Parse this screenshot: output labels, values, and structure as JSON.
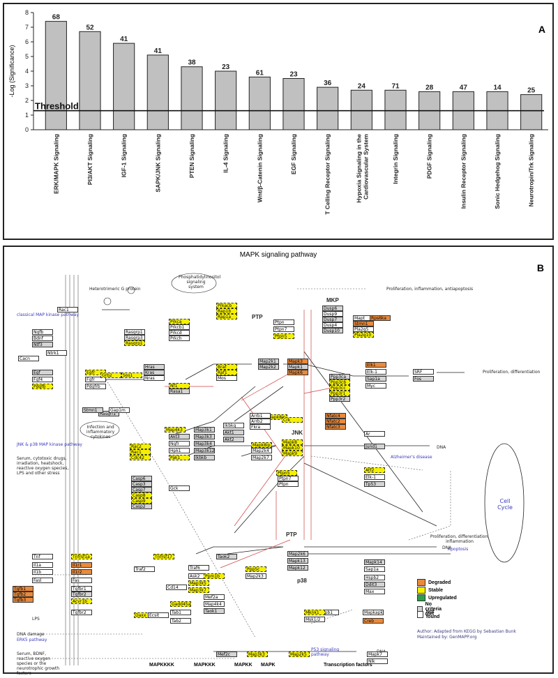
{
  "chart_data": {
    "type": "bar",
    "panel_label": "A",
    "ylabel": "-Log (Significance)",
    "ylim": [
      0,
      8
    ],
    "yticks": [
      0,
      1,
      2,
      3,
      4,
      5,
      6,
      7,
      8
    ],
    "threshold": {
      "label": "Threshold",
      "value": 1.3
    },
    "categories": [
      "ERK/MAPK Signaling",
      "PI3/AKT Signaling",
      "IGF-1 Signaling",
      "SAPK/JNK Signaling",
      "PTEN Signaling",
      "IL-4 Signaling",
      "Wnt/β-Catenin Signaling",
      "EGF Signaling",
      "T Celling Receptor Signaling",
      "Hypoxia Signaling in the Cardiovascular System",
      "Integrin Signaling",
      "PDGF Signaling",
      "Insulin Receptor Signaling",
      "Sonic Hedgehog Signaling",
      "Neurotropin/Trk Signaling"
    ],
    "values": [
      7.4,
      6.7,
      5.9,
      5.1,
      4.3,
      4.0,
      3.6,
      3.5,
      2.9,
      2.7,
      2.7,
      2.6,
      2.6,
      2.6,
      2.4
    ],
    "bar_labels": [
      "68",
      "52",
      "41",
      "41",
      "38",
      "23",
      "61",
      "23",
      "36",
      "24",
      "71",
      "28",
      "47",
      "14",
      "25"
    ],
    "bar_color": "#c0c0c0",
    "grid": false
  },
  "pathway": {
    "panel_label": "B",
    "title": "MAPK signaling pathway",
    "sections": [
      "classical MAP kinase pathway",
      "JNK & p38 MAP kinase pathway",
      "ERK5 pathway"
    ],
    "group_labels": [
      "PTP",
      "MKP",
      "PTP",
      "JNK",
      "p38"
    ],
    "tiers": [
      "MAPKKKK",
      "MAPKKK",
      "MAPKK",
      "MAPK",
      "Transcription factors"
    ],
    "legend": [
      {
        "label": "Degraded",
        "color": "#e98a3c"
      },
      {
        "label": "Stable",
        "color": "#f4f000"
      },
      {
        "label": "Upregulated",
        "color": "#2e9e4a"
      },
      {
        "label": "No criteria met",
        "color": "#d4d4d4"
      },
      {
        "label": "Not found",
        "color": "#ffffff"
      }
    ],
    "author": "Author:  Adapted from KEGG by Sebastian Bunk",
    "maintainer": "Maintained by: GenMAPP.org",
    "outcomes": {
      "prolif_inflam": "Proliferation, inflammation, antiapoptosis",
      "prolif_diff": "Proliferation, differentiation",
      "prolif_diff_inflam": "Proliferation, differentiation, inflammation",
      "apoptosis": "Apoptosis",
      "alzheimers": "Alzheimer's disease",
      "p53": "P53 signaling pathway",
      "cell_cycle": "Cell Cycle",
      "dna": "DNA",
      "dna_damage": "DNA damage",
      "lps": "LPS",
      "serum": "Serum, cytotoxic drugs, irradiation, heatshock, reactive oxygen species, LPS and other stress",
      "erk5_inputs": "Serum, BDNF, reactive oxygen species or the neurotrophic growth factors",
      "phosphatidylinositol": "Phosphatidylinositol signaling system",
      "heterotrimeric": "Heterotrimeric G protein",
      "infection": "Infection and inflammatory cytokines"
    },
    "nodes": [
      {
        "label": "Rasgrf1",
        "status": "NoCriteriaMet"
      },
      {
        "label": "Ngfb",
        "status": "NotFound"
      },
      {
        "label": "Bdnf",
        "status": "NotFound"
      },
      {
        "label": "Ntf3",
        "status": "NoCriteriaMet"
      },
      {
        "label": "Ntrk1",
        "status": "NotFound"
      },
      {
        "label": "Egf",
        "status": "NoCriteriaMet"
      },
      {
        "label": "Fgf4",
        "status": "NotFound"
      },
      {
        "label": "Pdgfb",
        "status": "Stable"
      },
      {
        "label": "Egfr",
        "status": "Stable"
      },
      {
        "label": "Fgfr",
        "status": "NotFound"
      },
      {
        "label": "Pdgfrb",
        "status": "NotFound"
      },
      {
        "label": "Grb2",
        "status": "Stable"
      },
      {
        "label": "Sos1",
        "status": "Stable"
      },
      {
        "label": "Stmn1",
        "status": "NoCriteriaMet"
      },
      {
        "label": "Gap1m",
        "status": "NotFound"
      },
      {
        "label": "Rasgrp1",
        "status": "NotFound"
      },
      {
        "label": "Rasgrp3",
        "status": "NotFound"
      },
      {
        "label": "Rasgrp1",
        "status": "Stable"
      },
      {
        "label": "Hras",
        "status": "NoCriteriaMet"
      },
      {
        "label": "Kras",
        "status": "NoCriteriaMet"
      },
      {
        "label": "Nras",
        "status": "NotFound"
      },
      {
        "label": "Prkca",
        "status": "Stable"
      },
      {
        "label": "Prkcb1",
        "status": "NotFound"
      },
      {
        "label": "Prkcd",
        "status": "NotFound"
      },
      {
        "label": "Prkch",
        "status": "NotFound"
      },
      {
        "label": "Prkacb",
        "status": "Stable"
      },
      {
        "label": "Rap1b",
        "status": "Stable"
      },
      {
        "label": "Rap1a",
        "status": "Stable"
      },
      {
        "label": "Nf1",
        "status": "Stable"
      },
      {
        "label": "Rasa1",
        "status": "NoCriteriaMet"
      },
      {
        "label": "Braf",
        "status": "Stable"
      },
      {
        "label": "Raf1",
        "status": "Stable"
      },
      {
        "label": "Mos",
        "status": "NotFound"
      },
      {
        "label": "Map2k1",
        "status": "NoCriteriaMet"
      },
      {
        "label": "Map2k2",
        "status": "NoCriteriaMet"
      },
      {
        "label": "Mapk3",
        "status": "Degraded"
      },
      {
        "label": "Mapk1",
        "status": "NoCriteriaMet"
      },
      {
        "label": "Mapk6",
        "status": "Degraded"
      },
      {
        "label": "Ptpn",
        "status": "NotFound"
      },
      {
        "label": "Ptpn7",
        "status": "NotFound"
      },
      {
        "label": "Ptpn5",
        "status": "Stable"
      },
      {
        "label": "Dusp6",
        "status": "NoCriteriaMet"
      },
      {
        "label": "Dusp9",
        "status": "NotFound"
      },
      {
        "label": "Dusp7",
        "status": "NoCriteriaMet"
      },
      {
        "label": "Dusp4",
        "status": "NotFound"
      },
      {
        "label": "Dusp10",
        "status": "NoCriteriaMet"
      },
      {
        "label": "Stmn1",
        "status": "Degraded"
      },
      {
        "label": "Pla2g5",
        "status": "NotFound"
      },
      {
        "label": "Pla2g10",
        "status": "Stable"
      },
      {
        "label": "Mapt",
        "status": "NotFound"
      },
      {
        "label": "Rps6ka",
        "status": "Degraded"
      },
      {
        "label": "Elk1",
        "status": "Degraded"
      },
      {
        "label": "Elk-1",
        "status": "NotFound"
      },
      {
        "label": "Sap1a",
        "status": "NoCriteriaMet"
      },
      {
        "label": "Myc",
        "status": "NotFound"
      },
      {
        "label": "SRF",
        "status": "NotFound"
      },
      {
        "label": "Fos",
        "status": "NoCriteriaMet"
      },
      {
        "label": "Ppp3ca",
        "status": "NoCriteriaMet"
      },
      {
        "label": "Ppp3cb",
        "status": "Stable"
      },
      {
        "label": "Ppp3cc",
        "status": "Stable"
      },
      {
        "label": "Ppp3r1",
        "status": "Stable"
      },
      {
        "label": "Ppp3r2",
        "status": "NoCriteriaMet"
      },
      {
        "label": "Map4k3",
        "status": "Stable"
      },
      {
        "label": "Map3k1",
        "status": "NoCriteriaMet"
      },
      {
        "label": "Map3k3",
        "status": "NoCriteriaMet"
      },
      {
        "label": "Map3k4",
        "status": "NoCriteriaMet"
      },
      {
        "label": "Map3k12",
        "status": "NoCriteriaMet"
      },
      {
        "label": "Ikbkb",
        "status": "NoCriteriaMet"
      },
      {
        "label": "Rac2",
        "status": "Stable"
      },
      {
        "label": "Rac1",
        "status": "Stable"
      },
      {
        "label": "Cdc42",
        "status": "Stable"
      },
      {
        "label": "Ngfr",
        "status": "NotFound"
      },
      {
        "label": "Hpk1",
        "status": "NotFound"
      },
      {
        "label": "Pak1",
        "status": "Stable"
      },
      {
        "label": "Gck",
        "status": "NotFound"
      },
      {
        "label": "Casp6",
        "status": "NoCriteriaMet"
      },
      {
        "label": "Casp3",
        "status": "NoCriteriaMet"
      },
      {
        "label": "Casp7",
        "status": "NoCriteriaMet"
      },
      {
        "label": "Casp8",
        "status": "Stable"
      },
      {
        "label": "Casp9",
        "status": "Stable"
      },
      {
        "label": "Casp2",
        "status": "NoCriteriaMet"
      },
      {
        "label": "Map2k4",
        "status": "NotFound"
      },
      {
        "label": "Map2k7",
        "status": "NotFound"
      },
      {
        "label": "Mapk8",
        "status": "Stable"
      },
      {
        "label": "Mapk10",
        "status": "Stable"
      },
      {
        "label": "Mapk9",
        "status": "Stable"
      },
      {
        "label": "Mapk8ip3",
        "status": "Stable"
      },
      {
        "label": "Mapk8ip1",
        "status": "Stable"
      },
      {
        "label": "Crk",
        "status": "Stable"
      },
      {
        "label": "Arrb1",
        "status": "NotFound"
      },
      {
        "label": "Arrb2",
        "status": "NotFound"
      },
      {
        "label": "Fkra",
        "status": "NotFound"
      },
      {
        "label": "Nfatc4",
        "status": "Degraded"
      },
      {
        "label": "Nfatc2",
        "status": "Degraded"
      },
      {
        "label": "Nfatc3",
        "status": "Degraded"
      },
      {
        "label": "Atf2",
        "status": "Stable"
      },
      {
        "label": "Elk-1",
        "status": "NotFound"
      },
      {
        "label": "Tp53",
        "status": "NoCriteriaMet"
      },
      {
        "label": "Ar",
        "status": "NotFound"
      },
      {
        "label": "Jund1",
        "status": "NoCriteriaMet"
      },
      {
        "label": "Ptpn5",
        "status": "Stable"
      },
      {
        "label": "Ptpn7",
        "status": "NotFound"
      },
      {
        "label": "Ptpn",
        "status": "NotFound"
      },
      {
        "label": "Tnf",
        "status": "NotFound"
      },
      {
        "label": "Il1a",
        "status": "NotFound"
      },
      {
        "label": "Il1b",
        "status": "NotFound"
      },
      {
        "label": "Fasl",
        "status": "NotFound"
      },
      {
        "label": "Tgfb1",
        "status": "Degraded"
      },
      {
        "label": "Tgfb2",
        "status": "Degraded"
      },
      {
        "label": "Tgfb3",
        "status": "Degraded"
      },
      {
        "label": "Tnfrsf1a",
        "status": "Stable"
      },
      {
        "label": "Il1r1",
        "status": "Degraded"
      },
      {
        "label": "Il1r2",
        "status": "Degraded"
      },
      {
        "label": "Fas",
        "status": "NotFound"
      },
      {
        "label": "Tgfbr1",
        "status": "NotFound"
      },
      {
        "label": "Tgfbr2",
        "status": "NoCriteriaMet"
      },
      {
        "label": "Acvr1b",
        "status": "Stable"
      },
      {
        "label": "Tgfbr2",
        "status": "NotFound"
      },
      {
        "label": "Cd14",
        "status": "NotFound"
      },
      {
        "label": "Traf2",
        "status": "NotFound"
      },
      {
        "label": "Daxx",
        "status": "Stable"
      },
      {
        "label": "Gadd45a",
        "status": "Stable"
      },
      {
        "label": "Tab1",
        "status": "NotFound"
      },
      {
        "label": "Tab2",
        "status": "NotFound"
      },
      {
        "label": "Ecsit",
        "status": "NotFound"
      },
      {
        "label": "Traf6",
        "status": "NotFound"
      },
      {
        "label": "Ask2",
        "status": "NotFound"
      },
      {
        "label": "Map3k5",
        "status": "Stable"
      },
      {
        "label": "Map3k7",
        "status": "Stable"
      },
      {
        "label": "Ppm1b",
        "status": "Stable"
      },
      {
        "label": "Ppp5c",
        "status": "Stable"
      },
      {
        "label": "Map2k3",
        "status": "NotFound"
      },
      {
        "label": "Map2k6",
        "status": "NoCriteriaMet"
      },
      {
        "label": "Mapk13",
        "status": "NoCriteriaMet"
      },
      {
        "label": "Mapk12",
        "status": "NoCriteriaMet"
      },
      {
        "label": "Mapk14",
        "status": "NoCriteriaMet"
      },
      {
        "label": "Hspb1",
        "status": "NotFound"
      },
      {
        "label": "Mapkapk2",
        "status": "NotFound"
      },
      {
        "label": "Mknk1",
        "status": "Stable"
      },
      {
        "label": "Msk1/2",
        "status": "NotFound"
      },
      {
        "label": "Hspb2",
        "status": "NotFound"
      },
      {
        "label": "Creb",
        "status": "Degraded"
      },
      {
        "label": "Sap1a",
        "status": "NotFound"
      },
      {
        "label": "Ddit3",
        "status": "NoCriteriaMet"
      },
      {
        "label": "Max",
        "status": "NotFound"
      },
      {
        "label": "Mef2c",
        "status": "NoCriteriaMet"
      },
      {
        "label": "Map3k3",
        "status": "Stable"
      },
      {
        "label": "Map2k5",
        "status": "Stable"
      },
      {
        "label": "Mapk7",
        "status": "NotFound"
      },
      {
        "label": "Nlk",
        "status": "NotFound"
      },
      {
        "label": "Mef2a",
        "status": "NotFound"
      },
      {
        "label": "Map4k4",
        "status": "NotFound"
      },
      {
        "label": "Taok1",
        "status": "NoCriteriaMet"
      },
      {
        "label": "Taok2",
        "status": "NoCriteriaMet"
      },
      {
        "label": "Ikbkg",
        "status": "NotFound"
      },
      {
        "label": "Akt1",
        "status": "NoCriteriaMet"
      },
      {
        "label": "Akt2",
        "status": "NoCriteriaMet"
      },
      {
        "label": "Akt3",
        "status": "NoCriteriaMet"
      },
      {
        "label": "Rac1",
        "status": "NotFound"
      },
      {
        "label": "Tnfrsf17",
        "status": "Stable"
      },
      {
        "label": "Cacn",
        "status": "NotFound"
      }
    ]
  }
}
